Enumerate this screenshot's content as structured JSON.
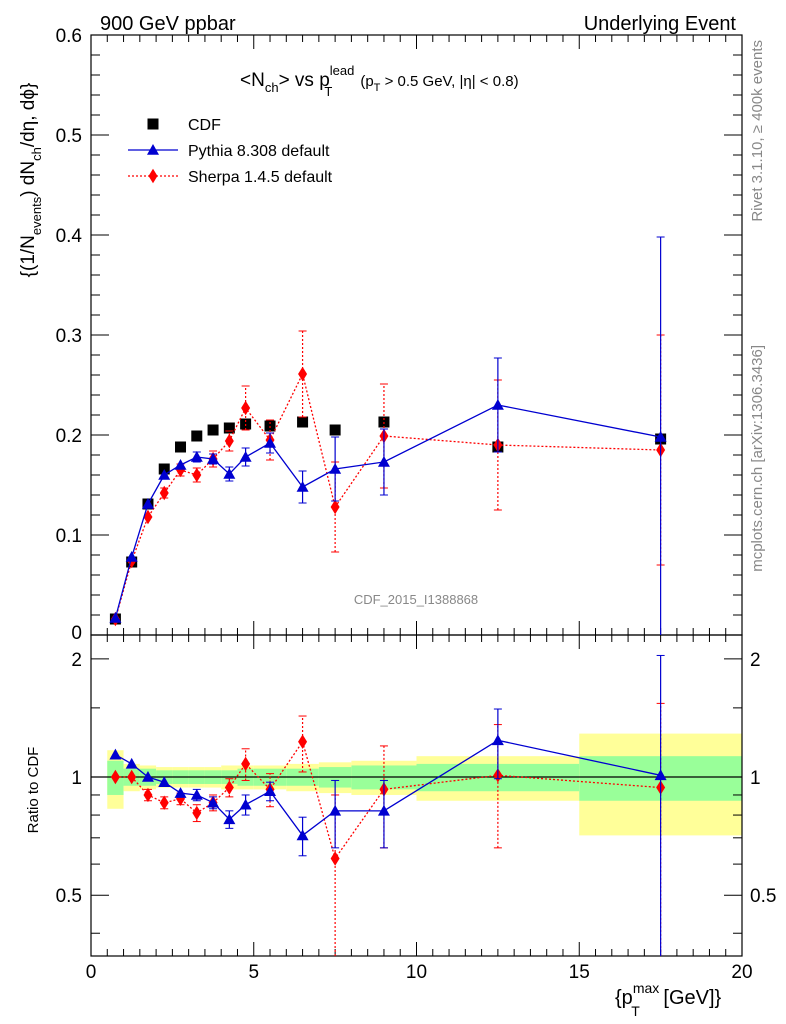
{
  "header": {
    "left": "900 GeV ppbar",
    "right": "Underlying Event"
  },
  "side": {
    "rivet": "Rivet 3.1.10, ≥ 400k events",
    "mcplots": "mcplots.cern.ch [arXiv:1306.3436]"
  },
  "watermark": "CDF_2015_I1388868",
  "chart_data": {
    "type": "scatter",
    "title": {
      "prefix": "<N",
      "prefix_sub": "ch",
      "middle": "> vs p",
      "p_sup": "lead",
      "p_sub": "T",
      "suffix_a": "(p",
      "suffix_sub": "T",
      "suffix_b": " > 0.5 GeV, |η| < 0.8)"
    },
    "ylabel": {
      "a": "{(1/N",
      "a_sub": "events",
      "b": ") dN",
      "b_sub": "ch",
      "c": "/dη, dϕ}"
    },
    "xlabel": {
      "a": "{p",
      "sup": "max",
      "sub": "T",
      "b": " [GeV]}"
    },
    "ratio_ylabel": "Ratio to CDF",
    "xlim": [
      0,
      20
    ],
    "ylim": [
      0,
      0.6
    ],
    "ratio_ylim": [
      0.35,
      2.3
    ],
    "x_ticks": [
      "0",
      "5",
      "10",
      "15",
      "20"
    ],
    "y_ticks": [
      "0",
      "0.1",
      "0.2",
      "0.3",
      "0.4",
      "0.5",
      "0.6"
    ],
    "ratio_ticks": [
      "0.5",
      "1",
      "2"
    ],
    "legend": [
      {
        "label": "CDF",
        "color": "#000000",
        "marker": "square"
      },
      {
        "label": "Pythia 8.308 default",
        "color": "#0000d0",
        "marker": "triangle"
      },
      {
        "label": "Sherpa 1.4.5 default",
        "color": "#ff0000",
        "marker": "diamond"
      }
    ],
    "cdf": {
      "x": [
        0.75,
        1.25,
        1.75,
        2.25,
        2.75,
        3.25,
        3.75,
        4.25,
        4.75,
        5.5,
        6.5,
        7.5,
        9.0,
        12.5,
        17.5
      ],
      "y": [
        0.016,
        0.073,
        0.131,
        0.166,
        0.188,
        0.199,
        0.205,
        0.207,
        0.211,
        0.209,
        0.213,
        0.205,
        0.213,
        0.188,
        0.196
      ],
      "x_lo": [
        0.5,
        1.0,
        1.5,
        2.0,
        2.5,
        3.0,
        3.5,
        4.0,
        4.5,
        5.0,
        6.0,
        7.0,
        8.0,
        10.0,
        15.0
      ],
      "x_hi": [
        1.0,
        1.5,
        2.0,
        2.5,
        3.0,
        3.5,
        4.0,
        4.5,
        5.0,
        6.0,
        7.0,
        8.0,
        10.0,
        15.0,
        20.0
      ],
      "band_stat": [
        0.1,
        0.05,
        0.05,
        0.04,
        0.04,
        0.04,
        0.04,
        0.04,
        0.05,
        0.05,
        0.05,
        0.06,
        0.07,
        0.08,
        0.13
      ],
      "band_tot": [
        0.17,
        0.08,
        0.07,
        0.06,
        0.06,
        0.06,
        0.06,
        0.07,
        0.07,
        0.07,
        0.08,
        0.09,
        0.1,
        0.13,
        0.29
      ]
    },
    "pythia": {
      "x": [
        0.75,
        1.25,
        1.75,
        2.25,
        2.75,
        3.25,
        3.75,
        4.25,
        4.75,
        5.5,
        6.5,
        7.5,
        9.0,
        12.5,
        17.5
      ],
      "y": [
        0.017,
        0.078,
        0.131,
        0.16,
        0.17,
        0.178,
        0.176,
        0.161,
        0.178,
        0.192,
        0.148,
        0.166,
        0.173,
        0.23,
        0.198
      ],
      "err": [
        0.001,
        0.003,
        0.003,
        0.004,
        0.004,
        0.005,
        0.005,
        0.007,
        0.009,
        0.01,
        0.016,
        0.032,
        0.033,
        0.047,
        0.2
      ],
      "ratio": [
        1.14,
        1.08,
        1.0,
        0.97,
        0.91,
        0.9,
        0.86,
        0.78,
        0.85,
        0.92,
        0.71,
        0.82,
        0.82,
        1.24,
        1.01
      ],
      "ratio_err": [
        0.01,
        0.02,
        0.02,
        0.02,
        0.02,
        0.03,
        0.03,
        0.04,
        0.05,
        0.05,
        0.08,
        0.16,
        0.16,
        0.25,
        1.03
      ]
    },
    "sherpa": {
      "x": [
        0.75,
        1.25,
        1.75,
        2.25,
        2.75,
        3.25,
        3.75,
        4.25,
        4.75,
        5.5,
        6.5,
        7.5,
        9.0,
        12.5,
        17.5
      ],
      "y": [
        0.016,
        0.074,
        0.118,
        0.142,
        0.165,
        0.16,
        0.176,
        0.194,
        0.227,
        0.195,
        0.261,
        0.128,
        0.199,
        0.19,
        0.185
      ],
      "err": [
        0.001,
        0.003,
        0.004,
        0.005,
        0.006,
        0.007,
        0.008,
        0.01,
        0.022,
        0.02,
        0.043,
        0.045,
        0.052,
        0.065,
        0.115
      ],
      "ratio": [
        1.0,
        1.0,
        0.9,
        0.86,
        0.88,
        0.81,
        0.86,
        0.94,
        1.08,
        0.93,
        1.23,
        0.62,
        0.93,
        1.01,
        0.94
      ],
      "ratio_err": [
        0.01,
        0.02,
        0.03,
        0.03,
        0.03,
        0.04,
        0.04,
        0.05,
        0.1,
        0.09,
        0.2,
        0.28,
        0.27,
        0.35,
        0.6
      ]
    }
  }
}
